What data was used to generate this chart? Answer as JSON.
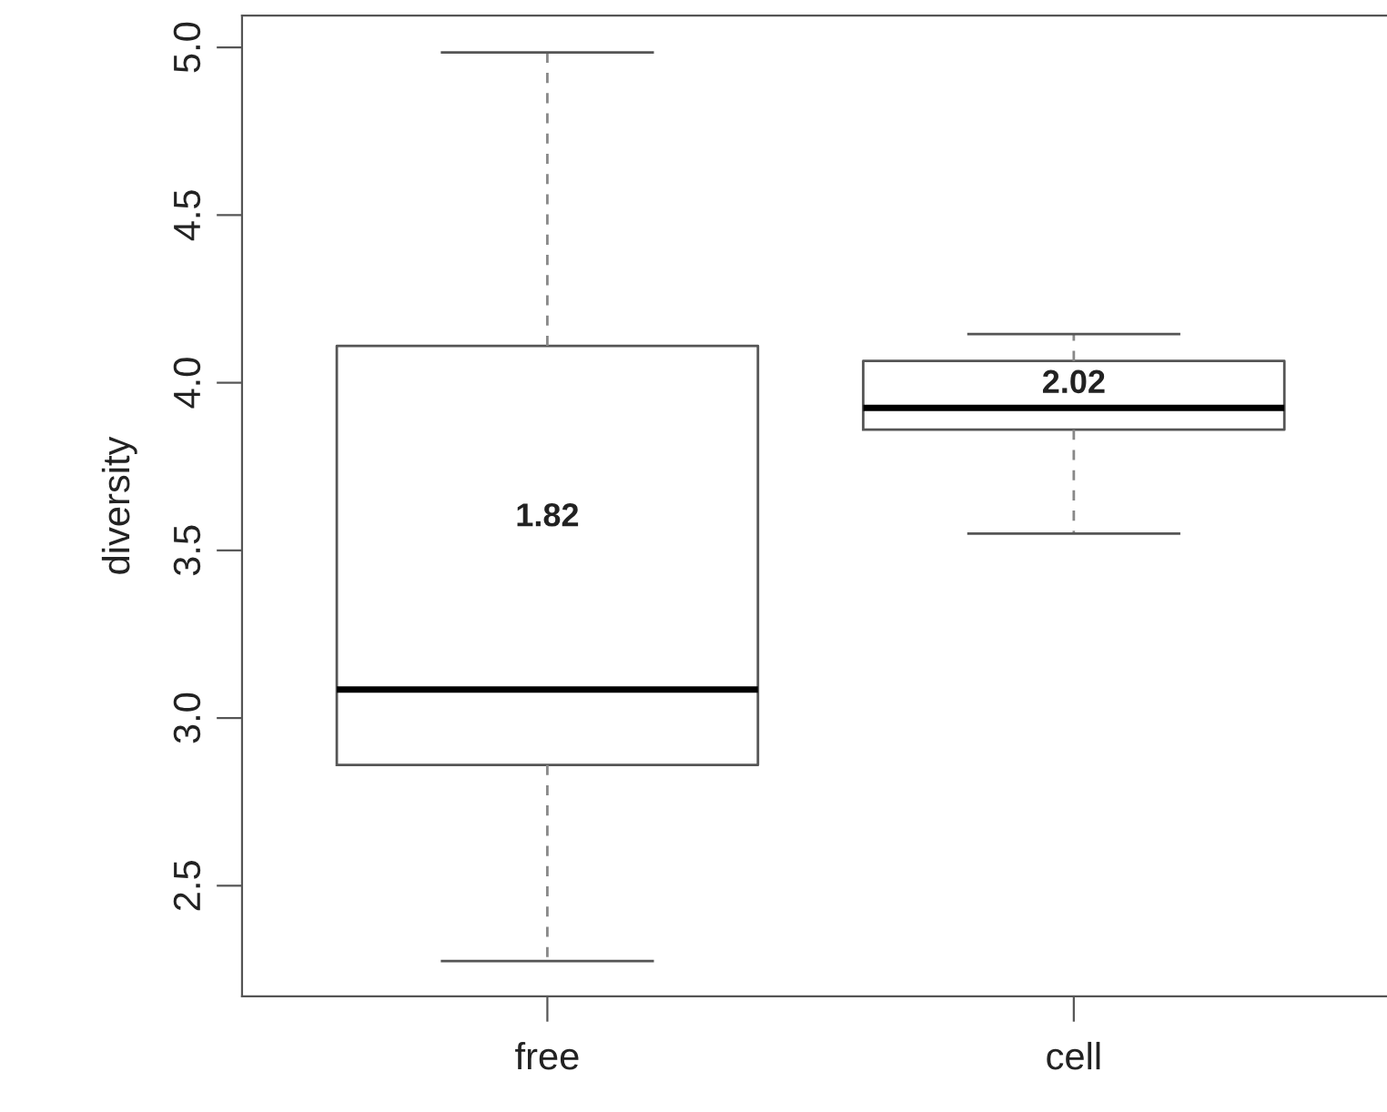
{
  "chart_data": {
    "type": "box",
    "ylabel": "diversity",
    "categories": [
      "free",
      "cell"
    ],
    "boxes": [
      {
        "low": 2.275,
        "q1": 2.86,
        "median": 3.085,
        "q3": 4.11,
        "high": 4.985
      },
      {
        "low": 3.55,
        "q1": 3.86,
        "median": 3.925,
        "q3": 4.065,
        "high": 4.145
      }
    ],
    "ylim": [
      2.17,
      5.095
    ],
    "yticks": [
      2.5,
      {
        "value": 3,
        "label": "3.0"
      },
      3.5,
      {
        "value": 4,
        "label": "4.0"
      },
      4.5,
      {
        "value": 5,
        "label": "5.0"
      }
    ],
    "annotations": [
      "1.82",
      "2.02"
    ],
    "grid": false,
    "legend": false
  }
}
